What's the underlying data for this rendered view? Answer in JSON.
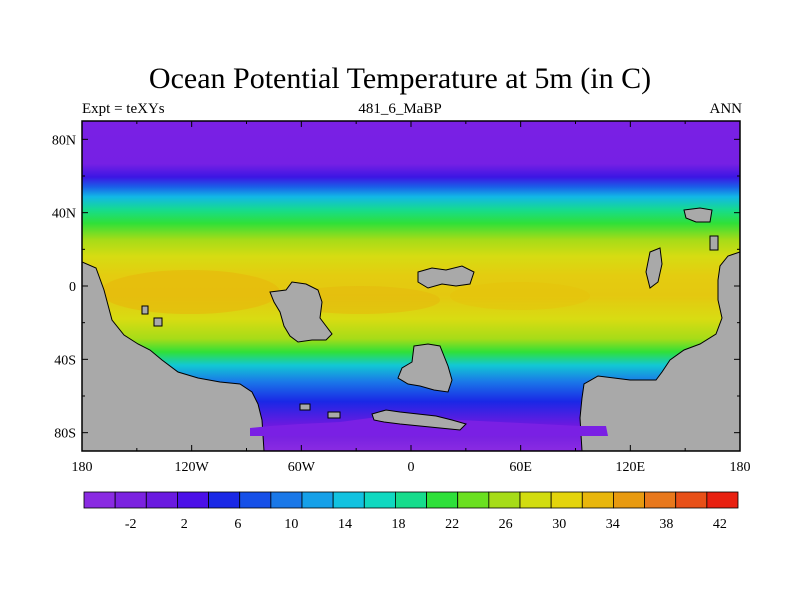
{
  "title": "Ocean Potential Temperature at 5m (in C)",
  "subtitle_left": "Expt = teXYs",
  "subtitle_center": "481_6_MaBP",
  "subtitle_right": "ANN",
  "colors": {
    "land": "#a9a9a9",
    "frame": "#000000",
    "palette": [
      "#8a2be2",
      "#7b22e0",
      "#6a1ae0",
      "#4b10e8",
      "#1a28e6",
      "#1650e8",
      "#1a78e8",
      "#16a0e8",
      "#12c2e0",
      "#10d8c0",
      "#16dc8c",
      "#2ee03a",
      "#6ae020",
      "#a6dc18",
      "#d2dc10",
      "#e4d40c",
      "#e8b60c",
      "#e89a10",
      "#e8781c",
      "#e85018",
      "#e82010"
    ]
  },
  "axes": {
    "lon_labels": [
      "180",
      "120W",
      "60W",
      "0",
      "60E",
      "120E",
      "180"
    ],
    "lat_labels": [
      "80N",
      "40N",
      "0",
      "40S",
      "80S"
    ]
  },
  "colorbar": {
    "labels": [
      "-2",
      "2",
      "6",
      "10",
      "14",
      "18",
      "22",
      "26",
      "30",
      "34",
      "38",
      "42"
    ]
  },
  "chart_data": {
    "type": "heatmap",
    "title": "Ocean Potential Temperature at 5m (in C)",
    "variable": "Ocean Potential Temperature at 5m (in C)",
    "xlim": [
      -180,
      180
    ],
    "ylim": [
      -90,
      90
    ],
    "x_ticks": [
      -180,
      -120,
      -60,
      0,
      60,
      120,
      180
    ],
    "y_ticks": [
      80,
      40,
      0,
      -40,
      -80
    ],
    "contour_levels": [
      -4,
      -2,
      0,
      2,
      4,
      6,
      8,
      10,
      12,
      14,
      16,
      18,
      20,
      22,
      24,
      26,
      28,
      30,
      32,
      34,
      36,
      38,
      40,
      42
    ],
    "zonal_profile": {
      "lat": [
        90,
        80,
        70,
        60,
        50,
        40,
        30,
        20,
        10,
        0,
        -10,
        -20,
        -30,
        -40,
        -50,
        -60,
        -70,
        -80
      ],
      "temperature": [
        -2,
        -1.5,
        2,
        6,
        14,
        22,
        27,
        31,
        33,
        33,
        32,
        30,
        26,
        20,
        14,
        8,
        3,
        -1
      ]
    }
  }
}
